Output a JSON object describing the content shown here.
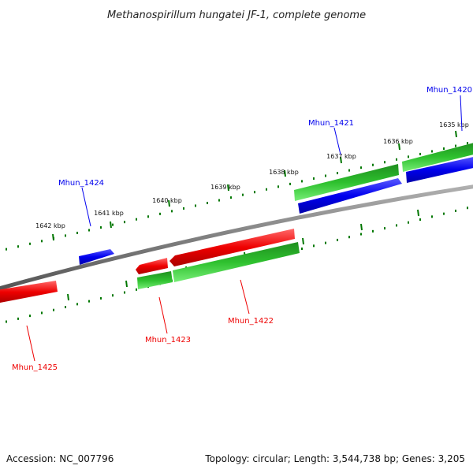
{
  "title": "Methanospirillum hungatei JF-1, complete genome",
  "footer": {
    "accession": "Accession: NC_007796",
    "summary": "Topology: circular; Length: 3,544,738 bp; Genes: 3,205"
  },
  "colors": {
    "forward": "#0000ee",
    "reverse": "#ee0000",
    "gc_positive": "#22bb22",
    "backbone": "#808080",
    "ticks": "#007700"
  },
  "ticks": [
    {
      "kbp": 1635,
      "label": "1635 kbp"
    },
    {
      "kbp": 1636,
      "label": "1636 kbp"
    },
    {
      "kbp": 1637,
      "label": "1637 kbp"
    },
    {
      "kbp": 1638,
      "label": "1638 kbp"
    },
    {
      "kbp": 1639,
      "label": "1639 kbp"
    },
    {
      "kbp": 1640,
      "label": "1640 kbp"
    },
    {
      "kbp": 1641,
      "label": "1641 kbp"
    },
    {
      "kbp": 1642,
      "label": "1642 kbp"
    }
  ],
  "genes": [
    {
      "name": "Mhun_1420",
      "strand": "forward"
    },
    {
      "name": "Mhun_1421",
      "strand": "forward"
    },
    {
      "name": "Mhun_1422",
      "strand": "reverse"
    },
    {
      "name": "Mhun_1423",
      "strand": "reverse"
    },
    {
      "name": "Mhun_1424",
      "strand": "forward"
    },
    {
      "name": "Mhun_1425",
      "strand": "reverse"
    }
  ]
}
